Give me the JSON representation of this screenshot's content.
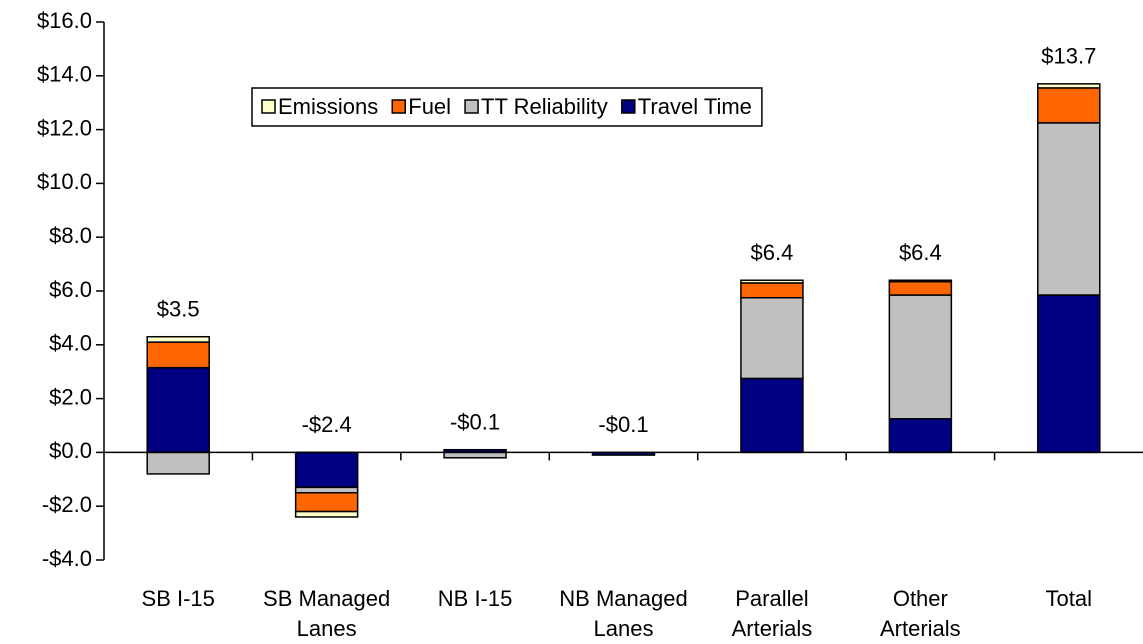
{
  "chart_data": {
    "type": "stacked-bar",
    "categories": [
      "SB I-15",
      "SB Managed Lanes",
      "NB I-15",
      "NB Managed Lanes",
      "Parallel Arterials",
      "Other Arterials",
      "Total"
    ],
    "series": [
      {
        "name": "Travel Time",
        "color": "#000080",
        "values": [
          3.15,
          -1.3,
          0.1,
          -0.1,
          2.75,
          1.25,
          5.85
        ]
      },
      {
        "name": "TT Reliability",
        "color": "#c0c0c0",
        "values": [
          -0.8,
          -0.2,
          -0.2,
          0,
          3.0,
          4.6,
          6.4
        ]
      },
      {
        "name": "Fuel",
        "color": "#ff6600",
        "values": [
          0.95,
          -0.7,
          0,
          0,
          0.55,
          0.5,
          1.3
        ]
      },
      {
        "name": "Emissions",
        "color": "#ffffcc",
        "values": [
          0.2,
          -0.2,
          0,
          0,
          0.1,
          0.05,
          0.15
        ]
      }
    ],
    "totals": {
      "values": [
        3.5,
        -2.4,
        -0.1,
        -0.1,
        6.4,
        6.4,
        13.7
      ],
      "value_labels": [
        "$3.5",
        "-$2.4",
        "-$0.1",
        "-$0.1",
        "$6.4",
        "$6.4",
        "$13.7"
      ]
    },
    "ylim": [
      -4,
      16
    ],
    "yticks": [
      {
        "value": -4,
        "label": "-$4.0"
      },
      {
        "value": -2,
        "label": "-$2.0"
      },
      {
        "value": 0,
        "label": "$0.0"
      },
      {
        "value": 2,
        "label": "$2.0"
      },
      {
        "value": 4,
        "label": "$4.0"
      },
      {
        "value": 6,
        "label": "$6.0"
      },
      {
        "value": 8,
        "label": "$8.0"
      },
      {
        "value": 10,
        "label": "$10.0"
      },
      {
        "value": 12,
        "label": "$12.0"
      },
      {
        "value": 14,
        "label": "$14.0"
      },
      {
        "value": 16,
        "label": "$16.0"
      }
    ],
    "grid": false,
    "legend": "top"
  }
}
